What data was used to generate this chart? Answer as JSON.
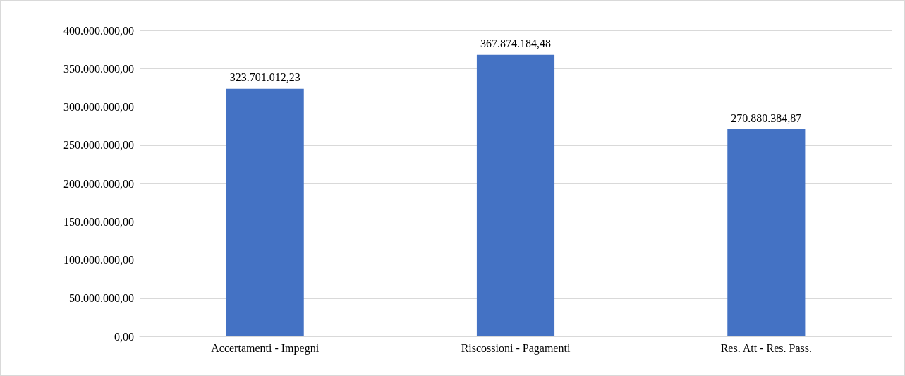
{
  "chart_data": {
    "type": "bar",
    "categories": [
      "Accertamenti - Impegni",
      "Riscossioni - Pagamenti",
      "Res. Att - Res. Pass."
    ],
    "values": [
      323701012.23,
      367874184.48,
      270880384.87
    ],
    "value_labels": [
      "323.701.012,23",
      "367.874.184,48",
      "270.880.384,87"
    ],
    "color": "#4472c4",
    "ylim": [
      0,
      400000000
    ],
    "yticks": [
      {
        "value": 0,
        "label": "0,00"
      },
      {
        "value": 50000000,
        "label": "50.000.000,00"
      },
      {
        "value": 100000000,
        "label": "100.000.000,00"
      },
      {
        "value": 150000000,
        "label": "150.000.000,00"
      },
      {
        "value": 200000000,
        "label": "200.000.000,00"
      },
      {
        "value": 250000000,
        "label": "250.000.000,00"
      },
      {
        "value": 300000000,
        "label": "300.000.000,00"
      },
      {
        "value": 350000000,
        "label": "350.000.000,00"
      },
      {
        "value": 400000000,
        "label": "400.000.000,00"
      }
    ],
    "grid": "y"
  }
}
